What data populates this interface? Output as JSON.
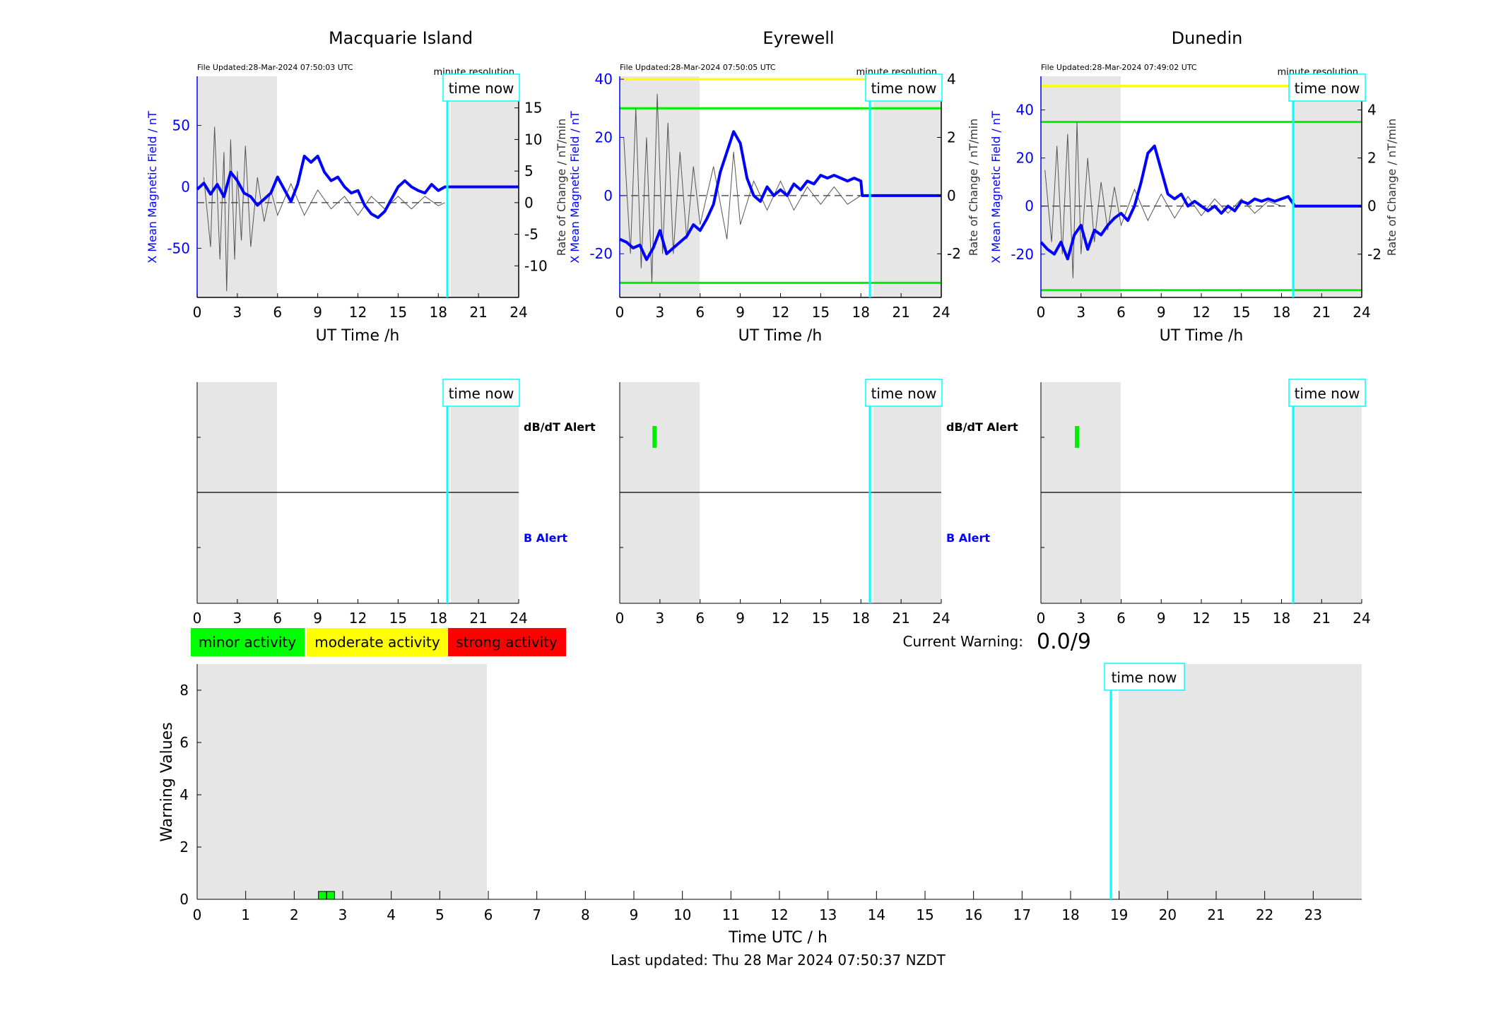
{
  "station_panels": [
    {
      "title": "Macquarie Island",
      "file_updated": "File Updated:28-Mar-2024 07:50:03 UTC",
      "resolution": "minute resolution",
      "xlabel": "UT Time /h",
      "ylabel_left": "X Mean Magnetic Field / nT",
      "ylabel_right": "Rate of Change / nT/min",
      "left_ticks": [
        50,
        0,
        -50
      ],
      "right_ticks": [
        15,
        10,
        5,
        0,
        -5,
        -10
      ],
      "x_ticks": [
        0,
        3,
        6,
        9,
        12,
        15,
        18,
        21,
        24
      ],
      "time_now_label": "time now",
      "time_now_hour": 18.9,
      "bfield_points": [
        [
          0,
          -2
        ],
        [
          0.5,
          3
        ],
        [
          1,
          -6
        ],
        [
          1.5,
          2
        ],
        [
          2,
          -8
        ],
        [
          2.5,
          12
        ],
        [
          3,
          5
        ],
        [
          3.5,
          -5
        ],
        [
          4,
          -8
        ],
        [
          4.5,
          -15
        ],
        [
          5,
          -10
        ],
        [
          5.5,
          -5
        ],
        [
          6,
          8
        ],
        [
          6.5,
          -2
        ],
        [
          7,
          -12
        ],
        [
          7.5,
          2
        ],
        [
          8,
          25
        ],
        [
          8.5,
          20
        ],
        [
          9,
          25
        ],
        [
          9.5,
          12
        ],
        [
          10,
          5
        ],
        [
          10.5,
          8
        ],
        [
          11,
          0
        ],
        [
          11.5,
          -5
        ],
        [
          12,
          -3
        ],
        [
          12.5,
          -15
        ],
        [
          13,
          -22
        ],
        [
          13.5,
          -25
        ],
        [
          14,
          -20
        ],
        [
          14.5,
          -10
        ],
        [
          15,
          0
        ],
        [
          15.5,
          5
        ],
        [
          16,
          0
        ],
        [
          16.5,
          -3
        ],
        [
          17,
          -5
        ],
        [
          17.5,
          2
        ],
        [
          18,
          -3
        ],
        [
          18.5,
          0
        ],
        [
          19,
          0
        ],
        [
          24,
          0
        ]
      ],
      "deriv_points": [
        [
          0.5,
          4
        ],
        [
          1,
          -7
        ],
        [
          1.3,
          12
        ],
        [
          1.7,
          -9
        ],
        [
          2,
          8
        ],
        [
          2.2,
          -14
        ],
        [
          2.5,
          10
        ],
        [
          2.8,
          -9
        ],
        [
          3,
          5
        ],
        [
          3.3,
          -6
        ],
        [
          3.6,
          9
        ],
        [
          4,
          -7
        ],
        [
          4.5,
          4
        ],
        [
          5,
          -3
        ],
        [
          5.5,
          2
        ],
        [
          6,
          -2
        ],
        [
          7,
          3
        ],
        [
          8,
          -2
        ],
        [
          9,
          2
        ],
        [
          10,
          -1
        ],
        [
          11,
          1
        ],
        [
          12,
          -2
        ],
        [
          13,
          1
        ],
        [
          14,
          -1
        ],
        [
          15,
          1
        ],
        [
          16,
          -1
        ],
        [
          17,
          1
        ],
        [
          18,
          -0.5
        ],
        [
          18.5,
          0
        ]
      ]
    },
    {
      "title": "Eyrewell",
      "file_updated": "File Updated:28-Mar-2024 07:50:05 UTC",
      "resolution": "minute resolution",
      "xlabel": "UT Time /h",
      "ylabel_left": "X Mean Magnetic Field / nT",
      "ylabel_right": "Rate of Change / nT/min",
      "left_ticks": [
        40,
        20,
        0,
        -20
      ],
      "right_ticks": [
        4,
        2,
        0,
        -2
      ],
      "x_ticks": [
        0,
        3,
        6,
        9,
        12,
        15,
        18,
        21,
        24
      ],
      "time_now_label": "time now",
      "time_now_hour": 18.9,
      "threshold_yellow": 40,
      "threshold_green": [
        30,
        -30
      ],
      "bfield_points": [
        [
          0,
          -15
        ],
        [
          0.5,
          -16
        ],
        [
          1,
          -18
        ],
        [
          1.5,
          -17
        ],
        [
          2,
          -22
        ],
        [
          2.5,
          -18
        ],
        [
          3,
          -12
        ],
        [
          3.5,
          -20
        ],
        [
          4,
          -18
        ],
        [
          4.5,
          -16
        ],
        [
          5,
          -14
        ],
        [
          5.5,
          -10
        ],
        [
          6,
          -12
        ],
        [
          6.5,
          -8
        ],
        [
          7,
          -3
        ],
        [
          7.5,
          8
        ],
        [
          8,
          15
        ],
        [
          8.5,
          22
        ],
        [
          9,
          18
        ],
        [
          9.5,
          6
        ],
        [
          10,
          0
        ],
        [
          10.5,
          -2
        ],
        [
          11,
          3
        ],
        [
          11.5,
          0
        ],
        [
          12,
          2
        ],
        [
          12.5,
          0
        ],
        [
          13,
          4
        ],
        [
          13.5,
          2
        ],
        [
          14,
          5
        ],
        [
          14.5,
          4
        ],
        [
          15,
          7
        ],
        [
          15.5,
          6
        ],
        [
          16,
          7
        ],
        [
          16.5,
          6
        ],
        [
          17,
          5
        ],
        [
          17.5,
          6
        ],
        [
          18,
          5
        ],
        [
          18.1,
          0
        ],
        [
          24,
          0
        ]
      ],
      "deriv_points": [
        [
          0.3,
          2
        ],
        [
          0.8,
          -2
        ],
        [
          1.2,
          3
        ],
        [
          1.6,
          -2.5
        ],
        [
          2,
          2
        ],
        [
          2.4,
          -3
        ],
        [
          2.8,
          3.5
        ],
        [
          3.2,
          -2
        ],
        [
          3.6,
          2.5
        ],
        [
          4,
          -2
        ],
        [
          4.5,
          1.5
        ],
        [
          5,
          -1.5
        ],
        [
          5.5,
          1
        ],
        [
          6,
          -1
        ],
        [
          7,
          1
        ],
        [
          8,
          -1.5
        ],
        [
          8.5,
          1.5
        ],
        [
          9,
          -1
        ],
        [
          10,
          0.5
        ],
        [
          11,
          -0.5
        ],
        [
          12,
          0.5
        ],
        [
          13,
          -0.5
        ],
        [
          14,
          0.3
        ],
        [
          15,
          -0.3
        ],
        [
          16,
          0.3
        ],
        [
          17,
          -0.3
        ],
        [
          18,
          0
        ]
      ]
    },
    {
      "title": "Dunedin",
      "file_updated": "File Updated:28-Mar-2024 07:49:02 UTC",
      "resolution": "minute resolution",
      "xlabel": "UT Time /h",
      "ylabel_left": "X Mean Magnetic Field / nT",
      "ylabel_right": "Rate of Change / nT/min",
      "left_ticks": [
        40,
        20,
        0,
        -20
      ],
      "right_ticks": [
        4,
        2,
        0,
        -2
      ],
      "x_ticks": [
        0,
        3,
        6,
        9,
        12,
        15,
        18,
        21,
        24
      ],
      "time_now_label": "time now",
      "time_now_hour": 18.9,
      "threshold_yellow": 50,
      "threshold_green": [
        35,
        -35
      ],
      "bfield_points": [
        [
          0,
          -15
        ],
        [
          0.5,
          -18
        ],
        [
          1,
          -20
        ],
        [
          1.5,
          -15
        ],
        [
          2,
          -22
        ],
        [
          2.5,
          -12
        ],
        [
          3,
          -8
        ],
        [
          3.5,
          -18
        ],
        [
          4,
          -10
        ],
        [
          4.5,
          -12
        ],
        [
          5,
          -8
        ],
        [
          5.5,
          -5
        ],
        [
          6,
          -3
        ],
        [
          6.5,
          -6
        ],
        [
          7,
          0
        ],
        [
          7.5,
          10
        ],
        [
          8,
          22
        ],
        [
          8.5,
          25
        ],
        [
          9,
          15
        ],
        [
          9.5,
          5
        ],
        [
          10,
          3
        ],
        [
          10.5,
          5
        ],
        [
          11,
          0
        ],
        [
          11.5,
          2
        ],
        [
          12,
          0
        ],
        [
          12.5,
          -2
        ],
        [
          13,
          0
        ],
        [
          13.5,
          -3
        ],
        [
          14,
          0
        ],
        [
          14.5,
          -2
        ],
        [
          15,
          2
        ],
        [
          15.5,
          1
        ],
        [
          16,
          3
        ],
        [
          16.5,
          2
        ],
        [
          17,
          3
        ],
        [
          17.5,
          2
        ],
        [
          18,
          3
        ],
        [
          18.5,
          4
        ],
        [
          19,
          0
        ],
        [
          24,
          0
        ]
      ],
      "deriv_points": [
        [
          0.3,
          1.5
        ],
        [
          0.8,
          -1.5
        ],
        [
          1.2,
          2.5
        ],
        [
          1.6,
          -2
        ],
        [
          2,
          3
        ],
        [
          2.4,
          -3
        ],
        [
          2.7,
          3.5
        ],
        [
          3,
          -2
        ],
        [
          3.5,
          2
        ],
        [
          4,
          -1.5
        ],
        [
          4.5,
          1
        ],
        [
          5,
          -1
        ],
        [
          5.5,
          0.8
        ],
        [
          6,
          -0.8
        ],
        [
          7,
          0.7
        ],
        [
          8,
          -0.6
        ],
        [
          9,
          0.5
        ],
        [
          10,
          -0.5
        ],
        [
          11,
          0.4
        ],
        [
          12,
          -0.4
        ],
        [
          13,
          0.3
        ],
        [
          14,
          -0.3
        ],
        [
          15,
          0.3
        ],
        [
          16,
          -0.3
        ],
        [
          17,
          0.2
        ],
        [
          18,
          0
        ]
      ]
    }
  ],
  "alert_panels": [
    {
      "time_now_label": "time now",
      "time_now_hour": 18.9,
      "dbdt_alert_label": "dB/dT Alert",
      "b_alert_label": "B Alert",
      "x_ticks": [
        0,
        3,
        6,
        9,
        12,
        15,
        18,
        21,
        24
      ],
      "dbdt_marks": []
    },
    {
      "time_now_label": "time now",
      "time_now_hour": 18.9,
      "dbdt_alert_label": "dB/dT Alert",
      "b_alert_label": "B Alert",
      "x_ticks": [
        0,
        3,
        6,
        9,
        12,
        15,
        18,
        21,
        24
      ],
      "dbdt_marks": [
        2.6
      ]
    },
    {
      "time_now_label": "time now",
      "time_now_hour": 18.9,
      "x_ticks": [
        0,
        3,
        6,
        9,
        12,
        15,
        18,
        21,
        24
      ],
      "dbdt_marks": [
        2.7
      ]
    }
  ],
  "legend": {
    "minor": "minor activity",
    "moderate": "moderate activity",
    "strong": "strong activity",
    "minor_color": "#00ff00",
    "moderate_color": "#ffff00",
    "strong_color": "#ff0000"
  },
  "current_warning": {
    "label": "Current Warning:",
    "value": "0.0/9"
  },
  "chart_data": {
    "type": "bar",
    "xlabel": "Time UTC / h",
    "ylabel": "Warning Values",
    "ylim": [
      0,
      9
    ],
    "y_ticks": [
      0,
      2,
      4,
      6,
      8
    ],
    "x_ticks": [
      0,
      1,
      2,
      3,
      4,
      5,
      6,
      7,
      8,
      9,
      10,
      11,
      12,
      13,
      14,
      15,
      16,
      17,
      18,
      19,
      20,
      21,
      22,
      23
    ],
    "bars": [
      {
        "hour": 2.5,
        "value": 0.3
      },
      {
        "hour": 2.67,
        "value": 0.3
      }
    ],
    "time_now_label": "time now",
    "time_now_hour": 18.85
  },
  "footer": "Last updated: Thu 28 Mar 2024 07:50:37 NZDT"
}
